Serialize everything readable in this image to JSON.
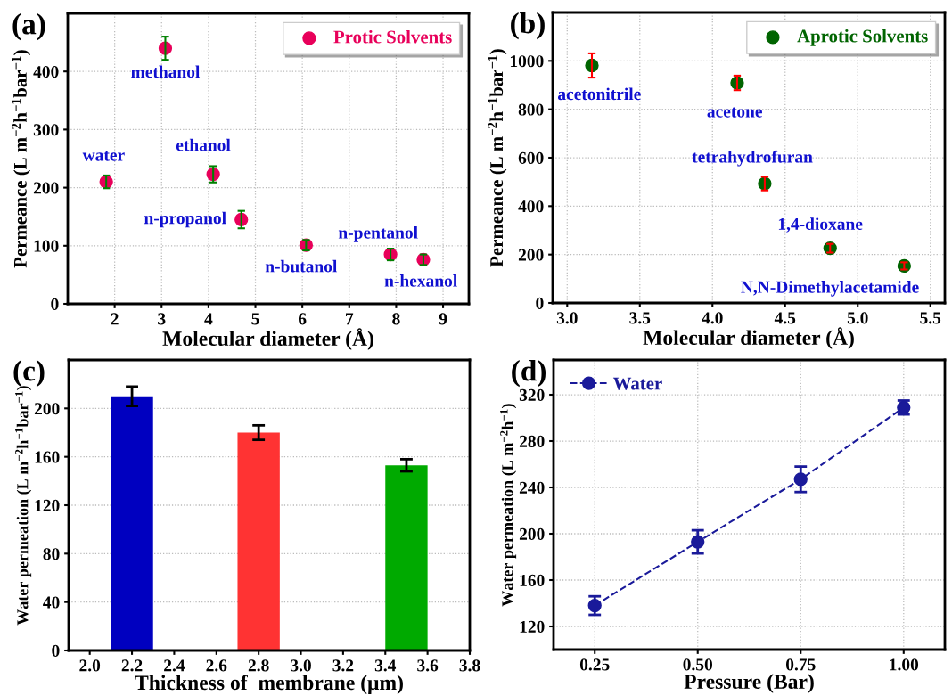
{
  "chart_data": [
    {
      "type": "scatter",
      "annotations": [
        "(a)",
        {
          "text": "water",
          "x": 1.82,
          "y": 210
        },
        {
          "text": "methanol",
          "x": 3.08,
          "y": 440
        },
        {
          "text": "ethanol",
          "x": 4.1,
          "y": 223
        },
        {
          "text": "n-propanol",
          "x": 4.7,
          "y": 145
        },
        {
          "text": "n-butanol",
          "x": 6.08,
          "y": 101
        },
        {
          "text": "n-pentanol",
          "x": 7.88,
          "y": 85
        },
        {
          "text": "n-hexanol",
          "x": 8.58,
          "y": 76
        }
      ],
      "xlabel": "Molecular diameter (Å)",
      "ylabel": "Permeance (L m$^{−2}$h$^{−1}$bar$^{−1}$)",
      "series": [
        {
          "name": "Protic Solvents",
          "color": "#e8005a",
          "x": [
            1.82,
            3.08,
            4.1,
            4.7,
            6.08,
            7.88,
            8.58
          ],
          "values": [
            210,
            440,
            223,
            145,
            101,
            85,
            76
          ],
          "errors": [
            11,
            20,
            14,
            15,
            9,
            10,
            9
          ]
        }
      ],
      "xlim": [
        1.0,
        9.55
      ],
      "xticks": [
        2,
        3,
        4,
        5,
        6,
        7,
        8,
        9
      ],
      "ylim": [
        0,
        500
      ],
      "yticks": [
        0,
        100,
        200,
        300,
        400
      ],
      "grid": true,
      "legend": "top right",
      "marker": "circle"
    },
    {
      "type": "scatter",
      "annotations": [
        "(b)",
        {
          "text": "acetonitrile",
          "x": 3.17,
          "y": 981
        },
        {
          "text": "acetone",
          "x": 4.17,
          "y": 909
        },
        {
          "text": "tetrahydrofuran",
          "x": 4.36,
          "y": 493
        },
        {
          "text": "1,4-dioxane",
          "x": 4.81,
          "y": 226
        },
        {
          "text": "N,N-Dimethylacetamide",
          "x": 5.32,
          "y": 153
        }
      ],
      "xlabel": "Molecular diameter (Å)",
      "ylabel": "Permeance (L m$^{−2}$h$^{−1}$bar$^{−1}$)",
      "series": [
        {
          "name": "Aprotic Solvents",
          "color": "#006400",
          "x": [
            3.17,
            4.17,
            4.36,
            4.81,
            5.32
          ],
          "values": [
            981,
            909,
            493,
            226,
            153
          ],
          "errors": [
            50,
            30,
            28,
            18,
            15
          ]
        }
      ],
      "xlim": [
        2.9,
        5.6
      ],
      "xticks": [
        {
          "value": 3.0,
          "label": "3.0"
        },
        3.5,
        {
          "value": 4.0,
          "label": "4.0"
        },
        4.5,
        {
          "value": 5.0,
          "label": "5.0"
        },
        5.5
      ],
      "ylim": [
        0,
        1200
      ],
      "yticks": [
        0,
        200,
        400,
        600,
        800,
        1000
      ],
      "grid": true,
      "legend": "top right",
      "marker": "circle"
    },
    {
      "type": "bar",
      "annotations": [
        "(c)"
      ],
      "xlabel": "Thickness of  membrane (μm)",
      "ylabel": "Water permeation (L m$^{−2}$h$^{−1}$bar$^{−1}$)",
      "x": [
        2.2,
        2.8,
        3.5
      ],
      "values": [
        210,
        180,
        153
      ],
      "errors": [
        8,
        6,
        5
      ],
      "colors": [
        "#0000c0",
        "#ff3333",
        "#00aa00"
      ],
      "xlim": [
        1.9,
        3.8
      ],
      "xticks": [
        {
          "value": 2.0,
          "label": "2.0"
        },
        2.2,
        2.4,
        2.6,
        2.8,
        {
          "value": 3.0,
          "label": "3.0"
        },
        3.2,
        3.4,
        3.6,
        3.8
      ],
      "ylim": [
        0,
        240
      ],
      "yticks": [
        0,
        40,
        80,
        120,
        160,
        200
      ],
      "grid": "y"
    },
    {
      "type": "line",
      "annotations": [
        "(d)"
      ],
      "xlabel": "Pressure (Bar)",
      "ylabel": "Water permeation (L m$^{−2}$h$^{−1}$)",
      "series": [
        {
          "name": "Water",
          "color": "#1a1a9a",
          "x": [
            0.25,
            0.5,
            0.75,
            1.0
          ],
          "values": [
            138,
            193,
            247,
            309
          ],
          "errors": [
            8,
            10,
            11,
            6
          ]
        }
      ],
      "xlim": [
        0.15,
        1.1
      ],
      "xticks": [
        {
          "value": 0.25,
          "label": "0.25"
        },
        {
          "value": 0.5,
          "label": "0.50"
        },
        {
          "value": 0.75,
          "label": "0.75"
        },
        {
          "value": 1.0,
          "label": "1.00"
        }
      ],
      "ylim": [
        100,
        350
      ],
      "yticks": [
        120,
        160,
        200,
        240,
        280,
        320
      ],
      "grid": true,
      "legend": "top left",
      "marker": "circle",
      "line_style": "dashed"
    }
  ]
}
